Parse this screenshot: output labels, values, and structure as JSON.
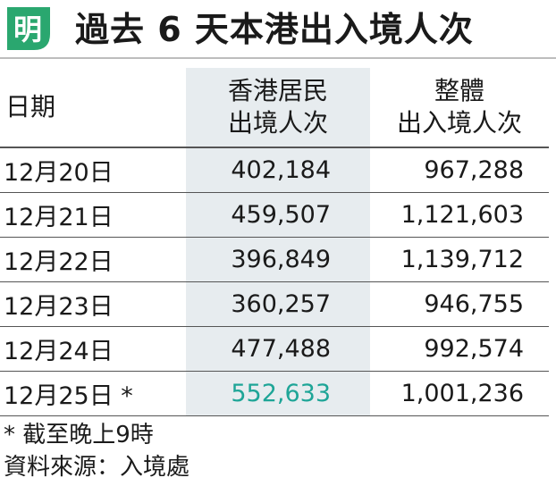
{
  "header": {
    "logo_char": "明",
    "title": "過去 6 天本港出入境人次"
  },
  "colors": {
    "logo_green": "#2aa76f",
    "highlight_value": "#1ea597",
    "highlight_column_bg": "#e7ecef"
  },
  "chart_data": {
    "type": "table",
    "columns": {
      "date": "日期",
      "hk_residents_line1": "香港居民",
      "hk_residents_line2": "出境人次",
      "total_line1": "整體",
      "total_line2": "出入境人次"
    },
    "rows": [
      {
        "date": "12月20日",
        "hk_residents": "402,184",
        "total": "967,288"
      },
      {
        "date": "12月21日",
        "hk_residents": "459,507",
        "total": "1,121,603"
      },
      {
        "date": "12月22日",
        "hk_residents": "396,849",
        "total": "1,139,712"
      },
      {
        "date": "12月23日",
        "hk_residents": "360,257",
        "total": "946,755"
      },
      {
        "date": "12月24日",
        "hk_residents": "477,488",
        "total": "992,574"
      },
      {
        "date": "12月25日 *",
        "hk_residents": "552,633",
        "total": "1,001,236",
        "highlight": true
      }
    ]
  },
  "footnotes": {
    "note": "* 截至晚上9時",
    "source": "資料來源：入境處"
  }
}
